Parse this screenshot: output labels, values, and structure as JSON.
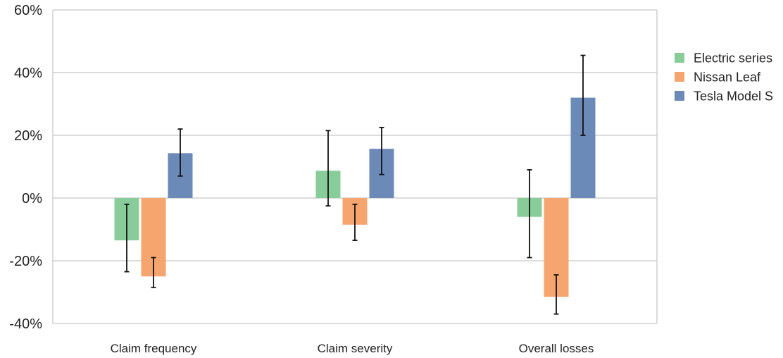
{
  "chart_data": {
    "type": "bar",
    "title": "",
    "xlabel": "",
    "ylabel": "",
    "categories": [
      "Claim frequency",
      "Claim severity",
      "Overall losses"
    ],
    "series": [
      {
        "name": "Electric series",
        "color": "#88cc99",
        "values": [
          -13.5,
          8.7,
          -6.0
        ],
        "error_low": [
          -23.5,
          -2.5,
          -19.0
        ],
        "error_high": [
          -2.0,
          21.5,
          9.0
        ]
      },
      {
        "name": "Nissan Leaf",
        "color": "#f7a56e",
        "values": [
          -25.0,
          -8.5,
          -31.5
        ],
        "error_low": [
          -28.5,
          -13.5,
          -37.0
        ],
        "error_high": [
          -19.0,
          -2.0,
          -24.5
        ]
      },
      {
        "name": "Tesla Model S",
        "color": "#6b8ab8",
        "values": [
          14.3,
          15.7,
          32.0
        ],
        "error_low": [
          7.0,
          7.5,
          20.0
        ],
        "error_high": [
          22.0,
          22.5,
          45.5
        ]
      }
    ],
    "ylim": [
      -40,
      60
    ],
    "yticks": [
      -40,
      -20,
      0,
      20,
      40,
      60
    ],
    "ytick_labels": [
      "-40%",
      "-20%",
      "0%",
      "20%",
      "40%",
      "60%"
    ],
    "grid": true,
    "legend_position": "right",
    "gridline_color": "#c8c8c8",
    "error_bar_color": "#111111"
  }
}
